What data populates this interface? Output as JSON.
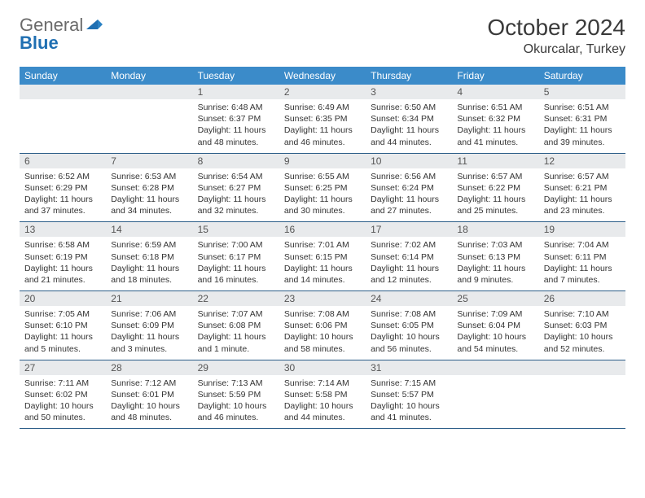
{
  "logo": {
    "general": "General",
    "blue": "Blue"
  },
  "header": {
    "month": "October 2024",
    "location": "Okurcalar, Turkey"
  },
  "colors": {
    "header_bg": "#3b8bc9",
    "header_text": "#ffffff",
    "daynum_bg": "#e8eaec",
    "row_border": "#2b5d88",
    "logo_general": "#6a6a6a",
    "logo_blue": "#1f6fb2"
  },
  "weekdays": [
    "Sunday",
    "Monday",
    "Tuesday",
    "Wednesday",
    "Thursday",
    "Friday",
    "Saturday"
  ],
  "weeks": [
    [
      {
        "blank": true
      },
      {
        "blank": true
      },
      {
        "num": "1",
        "sunrise": "Sunrise: 6:48 AM",
        "sunset": "Sunset: 6:37 PM",
        "day": "Daylight: 11 hours and 48 minutes."
      },
      {
        "num": "2",
        "sunrise": "Sunrise: 6:49 AM",
        "sunset": "Sunset: 6:35 PM",
        "day": "Daylight: 11 hours and 46 minutes."
      },
      {
        "num": "3",
        "sunrise": "Sunrise: 6:50 AM",
        "sunset": "Sunset: 6:34 PM",
        "day": "Daylight: 11 hours and 44 minutes."
      },
      {
        "num": "4",
        "sunrise": "Sunrise: 6:51 AM",
        "sunset": "Sunset: 6:32 PM",
        "day": "Daylight: 11 hours and 41 minutes."
      },
      {
        "num": "5",
        "sunrise": "Sunrise: 6:51 AM",
        "sunset": "Sunset: 6:31 PM",
        "day": "Daylight: 11 hours and 39 minutes."
      }
    ],
    [
      {
        "num": "6",
        "sunrise": "Sunrise: 6:52 AM",
        "sunset": "Sunset: 6:29 PM",
        "day": "Daylight: 11 hours and 37 minutes."
      },
      {
        "num": "7",
        "sunrise": "Sunrise: 6:53 AM",
        "sunset": "Sunset: 6:28 PM",
        "day": "Daylight: 11 hours and 34 minutes."
      },
      {
        "num": "8",
        "sunrise": "Sunrise: 6:54 AM",
        "sunset": "Sunset: 6:27 PM",
        "day": "Daylight: 11 hours and 32 minutes."
      },
      {
        "num": "9",
        "sunrise": "Sunrise: 6:55 AM",
        "sunset": "Sunset: 6:25 PM",
        "day": "Daylight: 11 hours and 30 minutes."
      },
      {
        "num": "10",
        "sunrise": "Sunrise: 6:56 AM",
        "sunset": "Sunset: 6:24 PM",
        "day": "Daylight: 11 hours and 27 minutes."
      },
      {
        "num": "11",
        "sunrise": "Sunrise: 6:57 AM",
        "sunset": "Sunset: 6:22 PM",
        "day": "Daylight: 11 hours and 25 minutes."
      },
      {
        "num": "12",
        "sunrise": "Sunrise: 6:57 AM",
        "sunset": "Sunset: 6:21 PM",
        "day": "Daylight: 11 hours and 23 minutes."
      }
    ],
    [
      {
        "num": "13",
        "sunrise": "Sunrise: 6:58 AM",
        "sunset": "Sunset: 6:19 PM",
        "day": "Daylight: 11 hours and 21 minutes."
      },
      {
        "num": "14",
        "sunrise": "Sunrise: 6:59 AM",
        "sunset": "Sunset: 6:18 PM",
        "day": "Daylight: 11 hours and 18 minutes."
      },
      {
        "num": "15",
        "sunrise": "Sunrise: 7:00 AM",
        "sunset": "Sunset: 6:17 PM",
        "day": "Daylight: 11 hours and 16 minutes."
      },
      {
        "num": "16",
        "sunrise": "Sunrise: 7:01 AM",
        "sunset": "Sunset: 6:15 PM",
        "day": "Daylight: 11 hours and 14 minutes."
      },
      {
        "num": "17",
        "sunrise": "Sunrise: 7:02 AM",
        "sunset": "Sunset: 6:14 PM",
        "day": "Daylight: 11 hours and 12 minutes."
      },
      {
        "num": "18",
        "sunrise": "Sunrise: 7:03 AM",
        "sunset": "Sunset: 6:13 PM",
        "day": "Daylight: 11 hours and 9 minutes."
      },
      {
        "num": "19",
        "sunrise": "Sunrise: 7:04 AM",
        "sunset": "Sunset: 6:11 PM",
        "day": "Daylight: 11 hours and 7 minutes."
      }
    ],
    [
      {
        "num": "20",
        "sunrise": "Sunrise: 7:05 AM",
        "sunset": "Sunset: 6:10 PM",
        "day": "Daylight: 11 hours and 5 minutes."
      },
      {
        "num": "21",
        "sunrise": "Sunrise: 7:06 AM",
        "sunset": "Sunset: 6:09 PM",
        "day": "Daylight: 11 hours and 3 minutes."
      },
      {
        "num": "22",
        "sunrise": "Sunrise: 7:07 AM",
        "sunset": "Sunset: 6:08 PM",
        "day": "Daylight: 11 hours and 1 minute."
      },
      {
        "num": "23",
        "sunrise": "Sunrise: 7:08 AM",
        "sunset": "Sunset: 6:06 PM",
        "day": "Daylight: 10 hours and 58 minutes."
      },
      {
        "num": "24",
        "sunrise": "Sunrise: 7:08 AM",
        "sunset": "Sunset: 6:05 PM",
        "day": "Daylight: 10 hours and 56 minutes."
      },
      {
        "num": "25",
        "sunrise": "Sunrise: 7:09 AM",
        "sunset": "Sunset: 6:04 PM",
        "day": "Daylight: 10 hours and 54 minutes."
      },
      {
        "num": "26",
        "sunrise": "Sunrise: 7:10 AM",
        "sunset": "Sunset: 6:03 PM",
        "day": "Daylight: 10 hours and 52 minutes."
      }
    ],
    [
      {
        "num": "27",
        "sunrise": "Sunrise: 7:11 AM",
        "sunset": "Sunset: 6:02 PM",
        "day": "Daylight: 10 hours and 50 minutes."
      },
      {
        "num": "28",
        "sunrise": "Sunrise: 7:12 AM",
        "sunset": "Sunset: 6:01 PM",
        "day": "Daylight: 10 hours and 48 minutes."
      },
      {
        "num": "29",
        "sunrise": "Sunrise: 7:13 AM",
        "sunset": "Sunset: 5:59 PM",
        "day": "Daylight: 10 hours and 46 minutes."
      },
      {
        "num": "30",
        "sunrise": "Sunrise: 7:14 AM",
        "sunset": "Sunset: 5:58 PM",
        "day": "Daylight: 10 hours and 44 minutes."
      },
      {
        "num": "31",
        "sunrise": "Sunrise: 7:15 AM",
        "sunset": "Sunset: 5:57 PM",
        "day": "Daylight: 10 hours and 41 minutes."
      },
      {
        "blank": true
      },
      {
        "blank": true
      }
    ]
  ]
}
